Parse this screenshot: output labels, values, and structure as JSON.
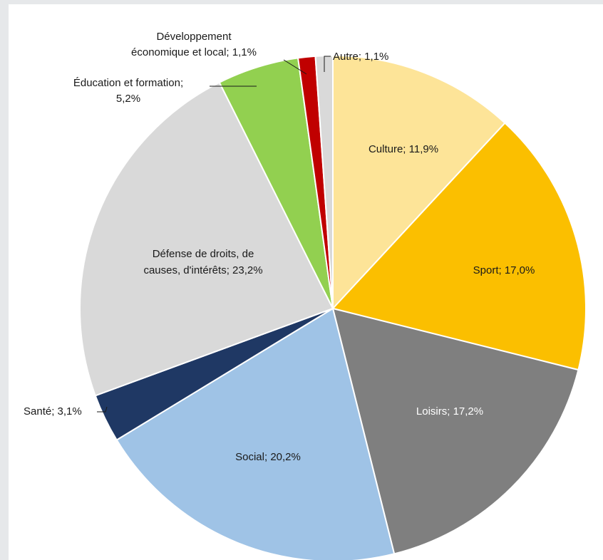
{
  "chart_data": {
    "type": "pie",
    "title": "",
    "slices": [
      {
        "name": "Culture",
        "value": 11.9,
        "label": "Culture; 11,9%",
        "color": "#fde498"
      },
      {
        "name": "Sport",
        "value": 17.0,
        "label": "Sport; 17,0%",
        "color": "#fbbf00"
      },
      {
        "name": "Loisirs",
        "value": 17.2,
        "label": "Loisirs; 17,2%",
        "color": "#7f7f7f"
      },
      {
        "name": "Social",
        "value": 20.2,
        "label": "Social; 20,2%",
        "color": "#9fc3e6"
      },
      {
        "name": "Santé",
        "value": 3.1,
        "label": "Santé; 3,1%",
        "color": "#1f3864"
      },
      {
        "name": "Défense de droits, de causes, d'intérêts",
        "value": 23.2,
        "label_lines": [
          "Défense de droits, de",
          "causes, d'intérêts; 23,2%"
        ],
        "color": "#d9d9d9"
      },
      {
        "name": "Éducation et formation",
        "value": 5.2,
        "label_lines": [
          "Éducation et formation;",
          "5,2%"
        ],
        "color": "#92d050"
      },
      {
        "name": "Développement économique et local",
        "value": 1.1,
        "label_lines": [
          "Développement",
          "économique et local; 1,1%"
        ],
        "color": "#c00000"
      },
      {
        "name": "Autre",
        "value": 1.1,
        "label": "Autre; 1,1%",
        "color": "#d9d9d9"
      }
    ]
  }
}
